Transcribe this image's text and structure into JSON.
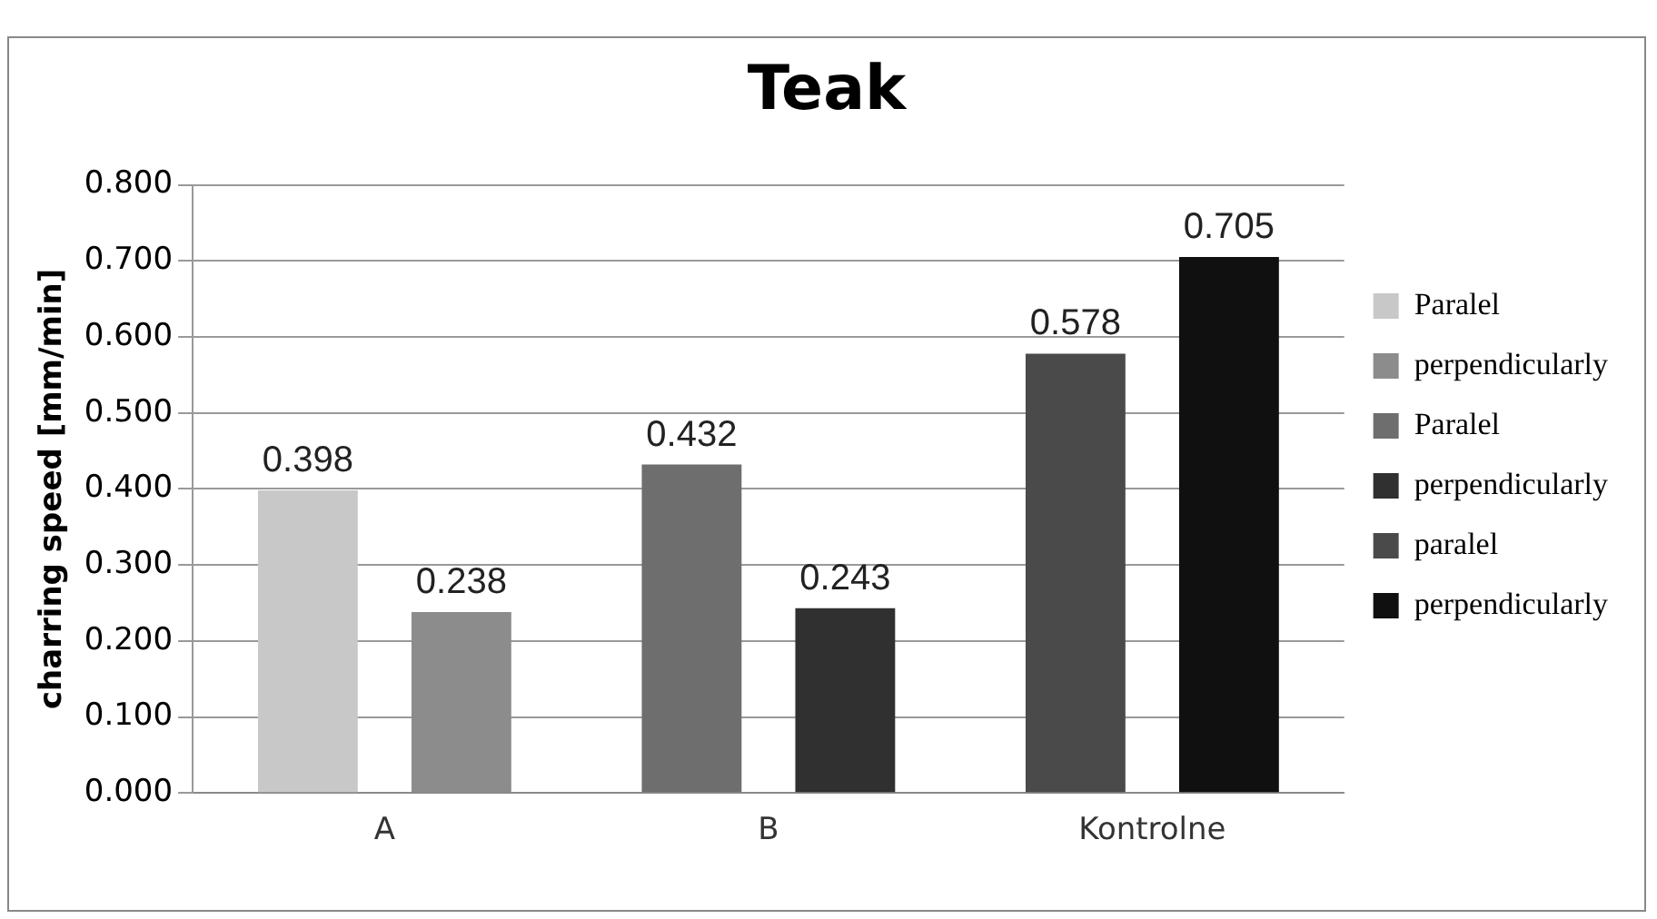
{
  "chart_data": {
    "type": "bar",
    "title": "Teak",
    "ylabel": "charring speed [mm/min]",
    "categories": [
      "A",
      "B",
      "Kontrolne"
    ],
    "series": [
      {
        "name": "Paralel",
        "color": "#c8c8c8",
        "values": [
          0.398,
          null,
          null
        ]
      },
      {
        "name": "perpendicularly",
        "color": "#8c8c8c",
        "values": [
          0.238,
          null,
          null
        ]
      },
      {
        "name": "Paralel",
        "color": "#6e6e6e",
        "values": [
          null,
          0.432,
          null
        ]
      },
      {
        "name": "perpendicularly",
        "color": "#303030",
        "values": [
          null,
          0.243,
          null
        ]
      },
      {
        "name": "paralel",
        "color": "#4a4a4a",
        "values": [
          null,
          null,
          0.578
        ]
      },
      {
        "name": "perpendicularly",
        "color": "#101010",
        "values": [
          null,
          null,
          0.705
        ]
      }
    ],
    "ylim": [
      0,
      0.8
    ],
    "yticks": [
      {
        "value": 0,
        "label": "0.000"
      },
      {
        "value": 0.1,
        "label": "0.100"
      },
      {
        "value": 0.2,
        "label": "0.200"
      },
      {
        "value": 0.3,
        "label": "0.300"
      },
      {
        "value": 0.4,
        "label": "0.400"
      },
      {
        "value": 0.5,
        "label": "0.500"
      },
      {
        "value": 0.6,
        "label": "0.600"
      },
      {
        "value": 0.7,
        "label": "0.700"
      },
      {
        "value": 0.8,
        "label": "0.800"
      }
    ],
    "grid": "y",
    "legend": "right",
    "data_labels": true
  }
}
